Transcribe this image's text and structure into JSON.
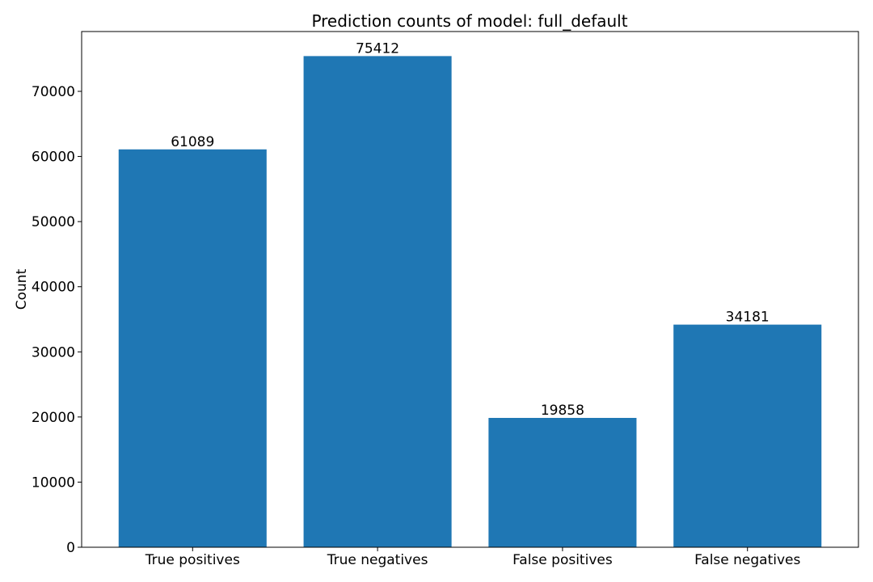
{
  "chart_data": {
    "type": "bar",
    "title": "Prediction counts of model: full_default",
    "xlabel": "",
    "ylabel": "Count",
    "categories": [
      "True positives",
      "True negatives",
      "False positives",
      "False negatives"
    ],
    "values": [
      61089,
      75412,
      19858,
      34181
    ],
    "data_labels": [
      "61089",
      "75412",
      "19858",
      "34181"
    ],
    "yticks": [
      0,
      10000,
      20000,
      30000,
      40000,
      50000,
      60000,
      70000
    ],
    "ytick_labels": [
      "0",
      "10000",
      "20000",
      "30000",
      "40000",
      "50000",
      "60000",
      "70000"
    ],
    "ylim": [
      0,
      79183
    ],
    "bar_color": "#1f77b4",
    "grid": false,
    "legend": "none"
  }
}
